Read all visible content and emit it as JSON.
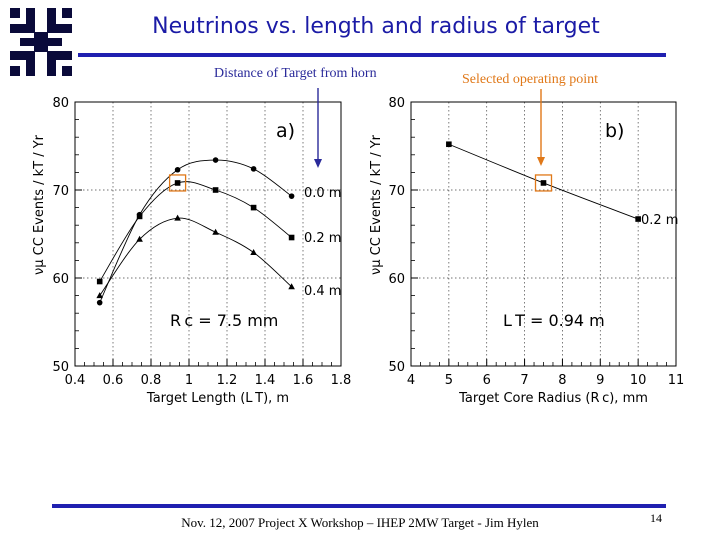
{
  "slide": {
    "title": "Neutrinos vs. length and radius of target",
    "annotation_left": "Distance of Target from horn",
    "annotation_right": "Selected operating point",
    "footer": "Nov. 12, 2007 Project X Workshop – IHEP 2MW Target - Jim Hylen",
    "page_number": "14",
    "colors": {
      "title": "#1b1ba6",
      "rule": "#2020b0",
      "arrow_blue": "#2a2a9a",
      "arrow_orange": "#e07818",
      "highlight_box": "#e07818"
    },
    "logo_icon": "fermilab-logo-icon"
  },
  "chart_data": [
    {
      "type": "line",
      "panel_label": "a)",
      "annotation_text": "R c = 7.5 mm",
      "xlabel": "Target Length (L T), m",
      "ylabel": "νμ CC Events / kT / Yr",
      "xlim": [
        0.4,
        1.8
      ],
      "ylim": [
        50,
        80
      ],
      "xticks": [
        "0.4",
        "0.6",
        "0.8",
        "1",
        "1.2",
        "1.4",
        "1.6",
        "1.8"
      ],
      "yticks": [
        "50",
        "60",
        "70",
        "80"
      ],
      "grid": true,
      "series": [
        {
          "name": "0.0 m",
          "marker": "circle",
          "x": [
            0.53,
            0.74,
            0.94,
            1.14,
            1.34,
            1.54
          ],
          "values": [
            57.2,
            67.2,
            72.3,
            73.4,
            72.4,
            69.3
          ]
        },
        {
          "name": "0.2 m",
          "marker": "square",
          "x": [
            0.53,
            0.74,
            0.94,
            1.14,
            1.34,
            1.54
          ],
          "values": [
            59.6,
            67.0,
            70.8,
            70.0,
            68.0,
            64.6
          ]
        },
        {
          "name": "0.4 m",
          "marker": "triangle",
          "x": [
            0.53,
            0.74,
            0.94,
            1.14,
            1.34,
            1.54
          ],
          "values": [
            58.0,
            64.4,
            66.8,
            65.2,
            62.9,
            59.0
          ]
        }
      ],
      "highlight": {
        "x": 0.94,
        "y": 70.8
      }
    },
    {
      "type": "line",
      "panel_label": "b)",
      "annotation_text": "L T = 0.94 m",
      "xlabel": "Target Core Radius (R c), mm",
      "ylabel": "νμ CC Events / kT / Yr",
      "xlim": [
        4,
        11
      ],
      "ylim": [
        50,
        80
      ],
      "xticks": [
        "4",
        "5",
        "6",
        "7",
        "8",
        "9",
        "10",
        "11"
      ],
      "yticks": [
        "50",
        "60",
        "70",
        "80"
      ],
      "grid": true,
      "series": [
        {
          "name": "0.2 m",
          "marker": "square",
          "x": [
            5,
            7.5,
            10
          ],
          "values": [
            75.2,
            70.8,
            66.7
          ]
        }
      ],
      "highlight": {
        "x": 7.5,
        "y": 70.8
      }
    }
  ]
}
